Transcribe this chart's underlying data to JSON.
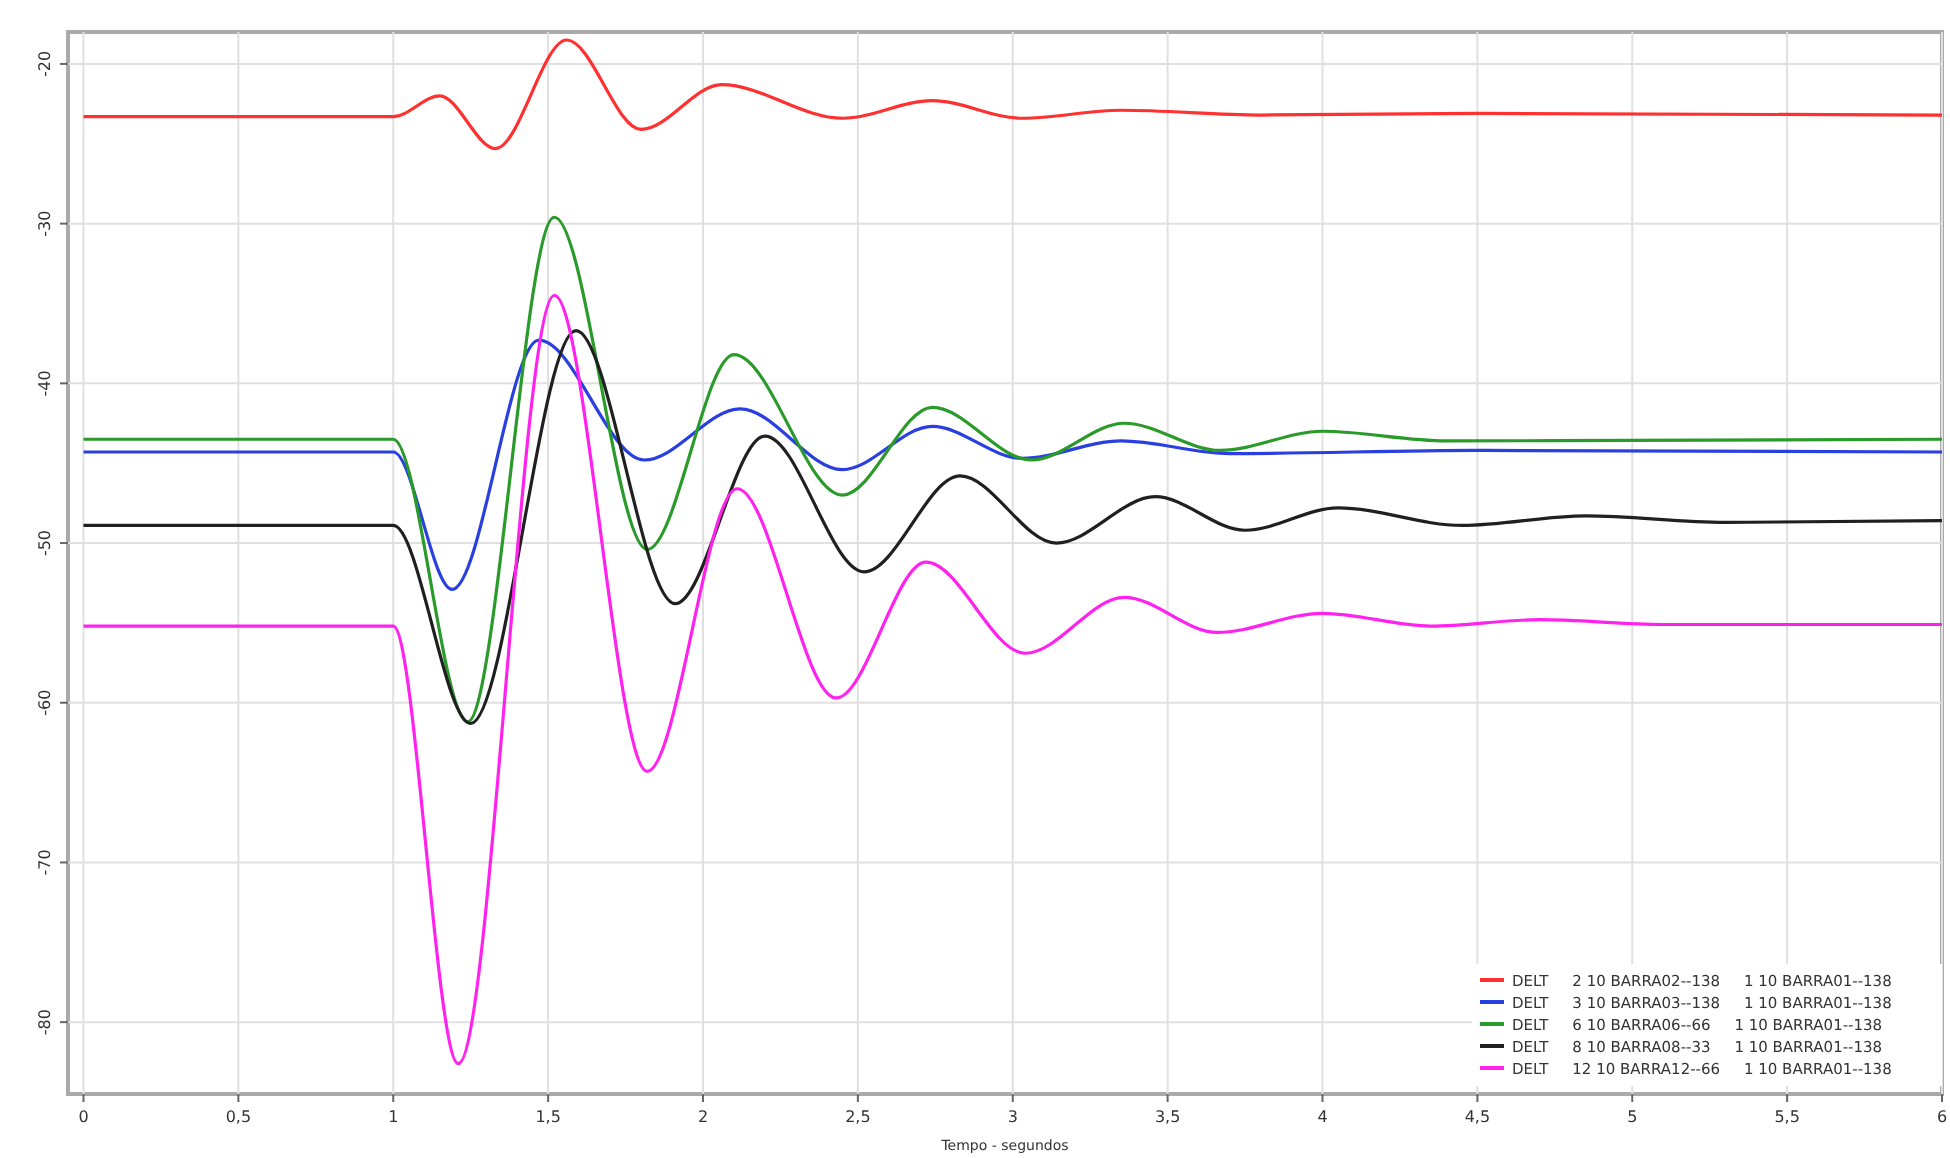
{
  "chart_data": {
    "type": "line",
    "xlabel": "Tempo - segundos",
    "xlim": [
      -0.05,
      6
    ],
    "ylim": [
      -84.5,
      -18
    ],
    "xticks": [
      0,
      {
        "value": 0.5,
        "label": "0,5"
      },
      1,
      {
        "value": 1.5,
        "label": "1,5"
      },
      2,
      {
        "value": 2.5,
        "label": "2,5"
      },
      3,
      {
        "value": 3.5,
        "label": "3,5"
      },
      4,
      {
        "value": 4.5,
        "label": "4,5"
      },
      5,
      {
        "value": 5.5,
        "label": "5,5"
      },
      6
    ],
    "yticks": [
      -80,
      -70,
      -60,
      -50,
      -40,
      -30,
      -20
    ],
    "grid": true,
    "legend": "bottom right",
    "marker": "none",
    "line_style": "solid",
    "series": [
      {
        "name": "DELT     2 10 BARRA02--138     1 10 BARRA01--138",
        "color": "#ff3030",
        "x": [
          0,
          1,
          1.15,
          1.33,
          1.56,
          1.8,
          2.06,
          2.45,
          2.74,
          3.03,
          3.35,
          3.8,
          4.5,
          6
        ],
        "values": [
          -23.3,
          -23.3,
          -22,
          -25.3,
          -18.5,
          -24.1,
          -21.3,
          -23.4,
          -22.3,
          -23.4,
          -22.9,
          -23.2,
          -23.1,
          -23.2
        ]
      },
      {
        "name": "DELT     3 10 BARRA03--138     1 10 BARRA01--138",
        "color": "#2a3fe0",
        "x": [
          0,
          1,
          1.19,
          1.47,
          1.81,
          2.12,
          2.45,
          2.74,
          3.03,
          3.35,
          3.7,
          4.5,
          6
        ],
        "values": [
          -44.3,
          -44.3,
          -52.9,
          -37.3,
          -44.8,
          -41.6,
          -45.4,
          -42.7,
          -44.7,
          -43.6,
          -44.4,
          -44.2,
          -44.3
        ]
      },
      {
        "name": "DELT     6 10 BARRA06--66     1 10 BARRA01--138",
        "color": "#2a9a2a",
        "x": [
          0,
          1,
          1.24,
          1.52,
          1.82,
          2.1,
          2.45,
          2.74,
          3.06,
          3.36,
          3.67,
          4,
          4.4,
          6
        ],
        "values": [
          -43.5,
          -43.5,
          -61.2,
          -29.6,
          -50.4,
          -38.2,
          -47,
          -41.5,
          -44.8,
          -42.5,
          -44.2,
          -43,
          -43.6,
          -43.5
        ]
      },
      {
        "name": "DELT     8 10 BARRA08--33     1 10 BARRA01--138",
        "color": "#202020",
        "x": [
          0,
          1,
          1.25,
          1.59,
          1.91,
          2.2,
          2.52,
          2.83,
          3.14,
          3.46,
          3.75,
          4.05,
          4.45,
          4.85,
          5.3,
          6
        ],
        "values": [
          -48.9,
          -48.9,
          -61.3,
          -36.7,
          -53.8,
          -43.3,
          -51.8,
          -45.8,
          -50,
          -47.1,
          -49.2,
          -47.8,
          -48.9,
          -48.3,
          -48.7,
          -48.6
        ]
      },
      {
        "name": "DELT     12 10 BARRA12--66     1 10 BARRA01--138",
        "color": "#ff22ee",
        "x": [
          0,
          1,
          1.21,
          1.52,
          1.82,
          2.11,
          2.43,
          2.72,
          3.04,
          3.36,
          3.66,
          4,
          4.35,
          4.7,
          5.1,
          6
        ],
        "values": [
          -55.2,
          -55.2,
          -82.6,
          -34.5,
          -64.3,
          -46.6,
          -59.7,
          -51.2,
          -56.9,
          -53.4,
          -55.6,
          -54.4,
          -55.2,
          -54.8,
          -55.1,
          -55.1
        ]
      }
    ]
  }
}
